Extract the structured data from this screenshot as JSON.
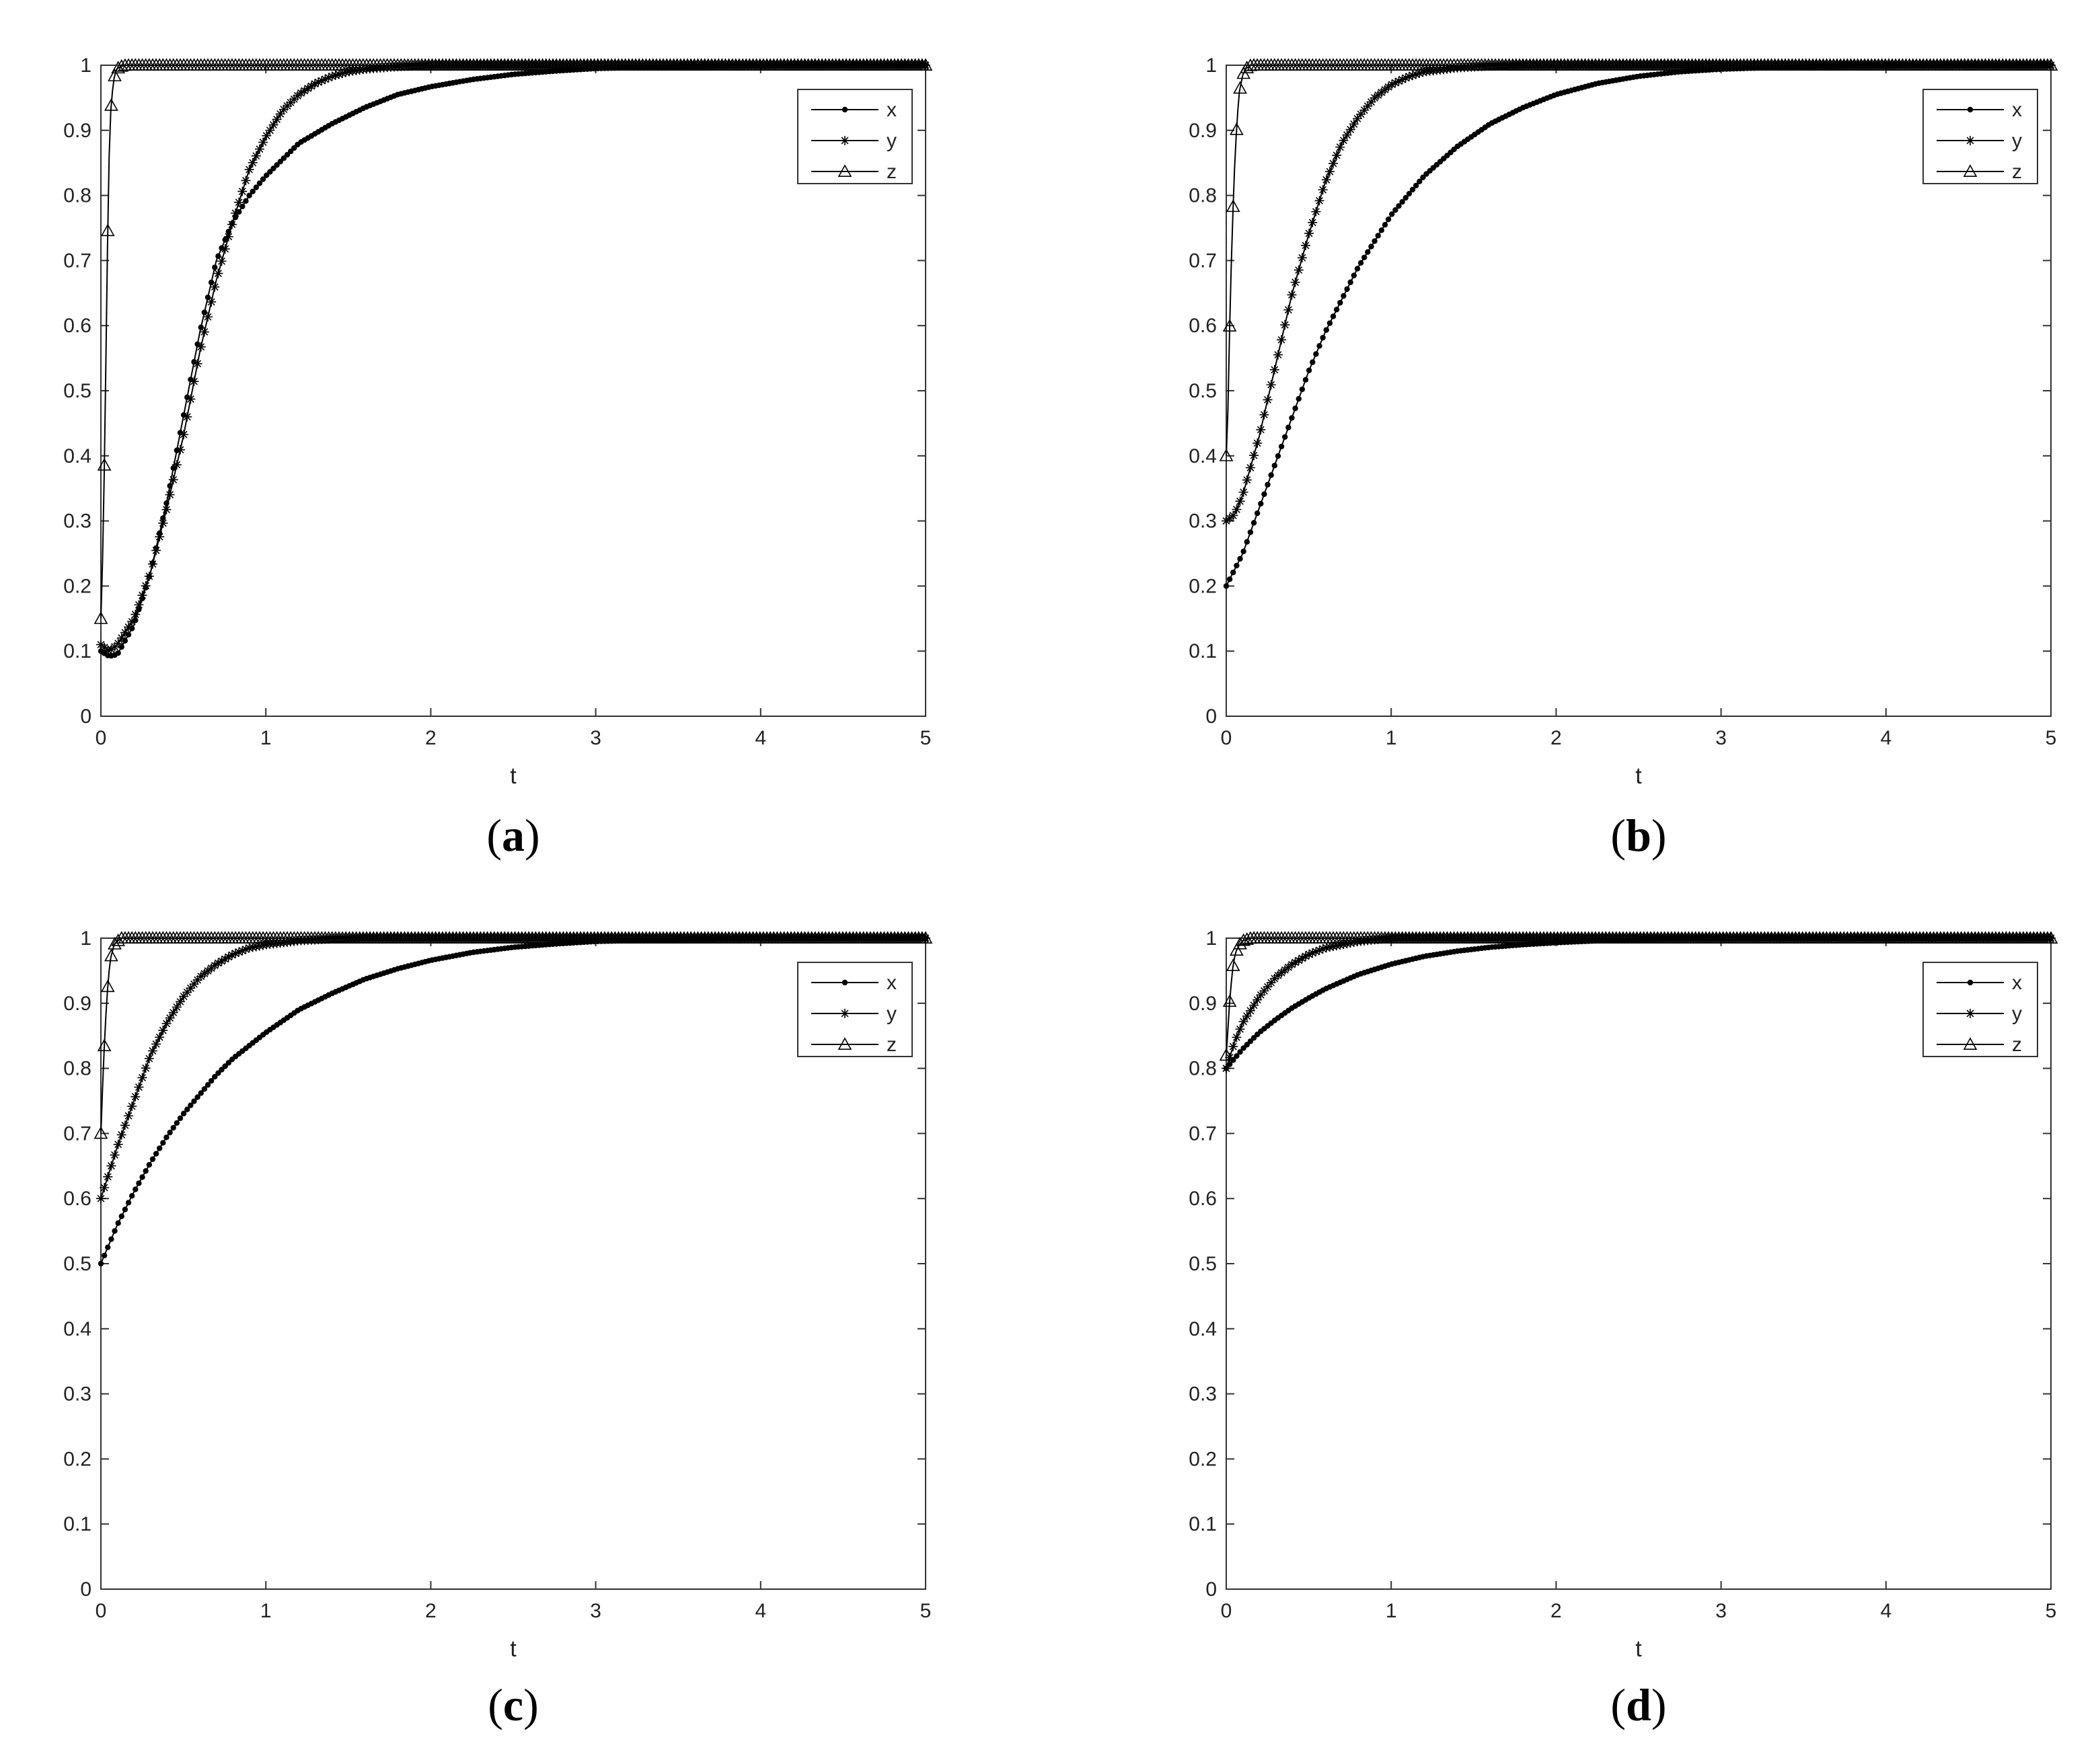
{
  "captions": [
    "a",
    "b",
    "c",
    "d"
  ],
  "chart_data": [
    {
      "type": "line",
      "panel": "a",
      "xlabel": "t",
      "ylabel": "",
      "xlim": [
        0,
        5
      ],
      "ylim": [
        0,
        1
      ],
      "xticks": [
        0,
        1,
        2,
        3,
        4,
        5
      ],
      "yticks": [
        0,
        0.1,
        0.2,
        0.3,
        0.4,
        0.5,
        0.6,
        0.7,
        0.8,
        0.9,
        1
      ],
      "legend_position": "top-right",
      "series": [
        {
          "name": "x",
          "marker": "dot",
          "color": "#000000",
          "x": [
            0,
            0.05,
            0.1,
            0.2,
            0.3,
            0.4,
            0.5,
            0.6,
            0.7,
            0.8,
            0.9,
            1.0,
            1.2,
            1.4,
            1.6,
            1.8,
            2.0,
            2.25,
            2.5,
            2.75,
            3.0,
            3.5,
            4.0,
            4.5,
            5.0
          ],
          "y": [
            0.1,
            0.092,
            0.095,
            0.14,
            0.22,
            0.33,
            0.46,
            0.59,
            0.7,
            0.76,
            0.8,
            0.83,
            0.88,
            0.91,
            0.935,
            0.955,
            0.967,
            0.978,
            0.986,
            0.991,
            0.995,
            0.998,
            0.999,
            1.0,
            1.0
          ]
        },
        {
          "name": "y",
          "marker": "star",
          "color": "#000000",
          "x": [
            0,
            0.05,
            0.1,
            0.2,
            0.3,
            0.4,
            0.5,
            0.6,
            0.7,
            0.8,
            0.9,
            1.0,
            1.1,
            1.2,
            1.3,
            1.4,
            1.5,
            1.6,
            1.8,
            2.0,
            2.5,
            3.0,
            3.5,
            4.0,
            4.5,
            5.0
          ],
          "y": [
            0.11,
            0.1,
            0.11,
            0.15,
            0.22,
            0.32,
            0.43,
            0.56,
            0.67,
            0.76,
            0.84,
            0.89,
            0.93,
            0.955,
            0.972,
            0.983,
            0.99,
            0.994,
            0.998,
            1.0,
            1.0,
            1.0,
            1.0,
            1.0,
            1.0,
            1.0
          ]
        },
        {
          "name": "z",
          "marker": "triangle",
          "color": "#000000",
          "x": [
            0,
            0.01,
            0.02,
            0.03,
            0.04,
            0.05,
            0.06,
            0.07,
            0.08,
            0.09,
            0.1,
            0.12,
            0.15,
            0.2,
            0.5,
            1.0,
            1.5,
            2.0,
            2.5,
            3.0,
            3.5,
            4.0,
            4.5,
            5.0
          ],
          "y": [
            0.15,
            0.24,
            0.37,
            0.54,
            0.72,
            0.86,
            0.93,
            0.96,
            0.98,
            0.99,
            0.995,
            0.998,
            1.0,
            1.0,
            1.0,
            1.0,
            1.0,
            1.0,
            1.0,
            1.0,
            1.0,
            1.0,
            1.0,
            1.0
          ]
        }
      ]
    },
    {
      "type": "line",
      "panel": "b",
      "xlabel": "t",
      "ylabel": "",
      "xlim": [
        0,
        5
      ],
      "ylim": [
        0,
        1
      ],
      "xticks": [
        0,
        1,
        2,
        3,
        4,
        5
      ],
      "yticks": [
        0,
        0.1,
        0.2,
        0.3,
        0.4,
        0.5,
        0.6,
        0.7,
        0.8,
        0.9,
        1
      ],
      "legend_position": "top-right",
      "series": [
        {
          "name": "x",
          "marker": "dot",
          "color": "#000000",
          "x": [
            0,
            0.1,
            0.2,
            0.3,
            0.4,
            0.5,
            0.6,
            0.7,
            0.8,
            0.9,
            1.0,
            1.2,
            1.4,
            1.6,
            1.8,
            2.0,
            2.25,
            2.5,
            2.75,
            3.0,
            3.5,
            4.0,
            4.5,
            5.0
          ],
          "y": [
            0.2,
            0.25,
            0.32,
            0.39,
            0.46,
            0.53,
            0.59,
            0.64,
            0.69,
            0.73,
            0.77,
            0.83,
            0.875,
            0.91,
            0.935,
            0.955,
            0.972,
            0.983,
            0.99,
            0.994,
            0.998,
            0.999,
            1.0,
            1.0
          ]
        },
        {
          "name": "y",
          "marker": "star",
          "color": "#000000",
          "x": [
            0,
            0.05,
            0.1,
            0.2,
            0.3,
            0.4,
            0.5,
            0.6,
            0.7,
            0.8,
            0.9,
            1.0,
            1.1,
            1.2,
            1.4,
            1.6,
            1.8,
            2.0,
            2.5,
            3.0,
            3.5,
            4.0,
            4.5,
            5.0
          ],
          "y": [
            0.3,
            0.31,
            0.34,
            0.43,
            0.54,
            0.65,
            0.74,
            0.82,
            0.88,
            0.92,
            0.95,
            0.97,
            0.982,
            0.99,
            0.996,
            0.999,
            1.0,
            1.0,
            1.0,
            1.0,
            1.0,
            1.0,
            1.0,
            1.0
          ]
        },
        {
          "name": "z",
          "marker": "triangle",
          "color": "#000000",
          "x": [
            0,
            0.01,
            0.02,
            0.03,
            0.04,
            0.05,
            0.06,
            0.07,
            0.08,
            0.1,
            0.12,
            0.15,
            0.2,
            0.5,
            1.0,
            1.5,
            2.0,
            2.5,
            3.0,
            3.5,
            4.0,
            4.5,
            5.0
          ],
          "y": [
            0.4,
            0.47,
            0.59,
            0.69,
            0.77,
            0.84,
            0.89,
            0.93,
            0.96,
            0.985,
            0.995,
            1.0,
            1.0,
            1.0,
            1.0,
            1.0,
            1.0,
            1.0,
            1.0,
            1.0,
            1.0,
            1.0,
            1.0
          ]
        }
      ]
    },
    {
      "type": "line",
      "panel": "c",
      "xlabel": "t",
      "ylabel": "",
      "xlim": [
        0,
        5
      ],
      "ylim": [
        0,
        1
      ],
      "xticks": [
        0,
        1,
        2,
        3,
        4,
        5
      ],
      "yticks": [
        0,
        0.1,
        0.2,
        0.3,
        0.4,
        0.5,
        0.6,
        0.7,
        0.8,
        0.9,
        1
      ],
      "legend_position": "top-right",
      "series": [
        {
          "name": "x",
          "marker": "dot",
          "color": "#000000",
          "x": [
            0,
            0.1,
            0.2,
            0.3,
            0.4,
            0.5,
            0.6,
            0.7,
            0.8,
            0.9,
            1.0,
            1.2,
            1.4,
            1.6,
            1.8,
            2.0,
            2.25,
            2.5,
            2.75,
            3.0,
            3.5,
            4.0,
            4.5,
            5.0
          ],
          "y": [
            0.5,
            0.56,
            0.61,
            0.655,
            0.695,
            0.73,
            0.76,
            0.79,
            0.815,
            0.835,
            0.855,
            0.89,
            0.915,
            0.937,
            0.953,
            0.966,
            0.978,
            0.986,
            0.991,
            0.995,
            0.998,
            0.999,
            1.0,
            1.0
          ]
        },
        {
          "name": "y",
          "marker": "star",
          "color": "#000000",
          "x": [
            0,
            0.05,
            0.1,
            0.2,
            0.3,
            0.4,
            0.5,
            0.6,
            0.7,
            0.8,
            0.9,
            1.0,
            1.2,
            1.4,
            1.6,
            2.0,
            2.5,
            3.0,
            3.5,
            4.0,
            4.5,
            5.0
          ],
          "y": [
            0.6,
            0.64,
            0.68,
            0.75,
            0.82,
            0.87,
            0.91,
            0.94,
            0.96,
            0.975,
            0.985,
            0.99,
            0.996,
            0.999,
            1.0,
            1.0,
            1.0,
            1.0,
            1.0,
            1.0,
            1.0,
            1.0
          ]
        },
        {
          "name": "z",
          "marker": "triangle",
          "color": "#000000",
          "x": [
            0,
            0.01,
            0.02,
            0.03,
            0.04,
            0.05,
            0.06,
            0.08,
            0.1,
            0.12,
            0.15,
            0.2,
            0.5,
            1.0,
            1.5,
            2.0,
            2.5,
            3.0,
            3.5,
            4.0,
            4.5,
            5.0
          ],
          "y": [
            0.7,
            0.77,
            0.83,
            0.88,
            0.92,
            0.95,
            0.97,
            0.99,
            0.995,
            1.0,
            1.0,
            1.0,
            1.0,
            1.0,
            1.0,
            1.0,
            1.0,
            1.0,
            1.0,
            1.0,
            1.0,
            1.0
          ]
        }
      ]
    },
    {
      "type": "line",
      "panel": "d",
      "xlabel": "t",
      "ylabel": "",
      "xlim": [
        0,
        5
      ],
      "ylim": [
        0,
        1
      ],
      "xticks": [
        0,
        1,
        2,
        3,
        4,
        5
      ],
      "yticks": [
        0,
        0.1,
        0.2,
        0.3,
        0.4,
        0.5,
        0.6,
        0.7,
        0.8,
        0.9,
        1
      ],
      "legend_position": "top-right",
      "series": [
        {
          "name": "x",
          "marker": "dot",
          "color": "#000000",
          "x": [
            0,
            0.1,
            0.2,
            0.3,
            0.4,
            0.5,
            0.6,
            0.8,
            1.0,
            1.2,
            1.4,
            1.6,
            1.8,
            2.0,
            2.25,
            2.5,
            2.75,
            3.0,
            3.5,
            4.0,
            4.5,
            5.0
          ],
          "y": [
            0.8,
            0.83,
            0.855,
            0.875,
            0.893,
            0.908,
            0.922,
            0.944,
            0.96,
            0.972,
            0.98,
            0.986,
            0.99,
            0.993,
            0.996,
            0.998,
            0.999,
            1.0,
            1.0,
            1.0,
            1.0,
            1.0
          ]
        },
        {
          "name": "y",
          "marker": "star",
          "color": "#000000",
          "x": [
            0,
            0.05,
            0.1,
            0.2,
            0.3,
            0.4,
            0.5,
            0.6,
            0.8,
            1.0,
            1.5,
            2.0,
            2.5,
            3.0,
            3.5,
            4.0,
            4.5,
            5.0
          ],
          "y": [
            0.8,
            0.84,
            0.87,
            0.91,
            0.94,
            0.96,
            0.975,
            0.985,
            0.995,
            1.0,
            1.0,
            1.0,
            1.0,
            1.0,
            1.0,
            1.0,
            1.0,
            1.0
          ]
        },
        {
          "name": "z",
          "marker": "triangle",
          "color": "#000000",
          "x": [
            0,
            0.01,
            0.02,
            0.03,
            0.04,
            0.05,
            0.06,
            0.08,
            0.1,
            0.15,
            0.2,
            0.5,
            1.0,
            1.5,
            2.0,
            2.5,
            3.0,
            3.5,
            4.0,
            4.5,
            5.0
          ],
          "y": [
            0.82,
            0.86,
            0.9,
            0.93,
            0.955,
            0.97,
            0.98,
            0.99,
            0.996,
            1.0,
            1.0,
            1.0,
            1.0,
            1.0,
            1.0,
            1.0,
            1.0,
            1.0,
            1.0,
            1.0,
            1.0
          ]
        }
      ]
    }
  ]
}
